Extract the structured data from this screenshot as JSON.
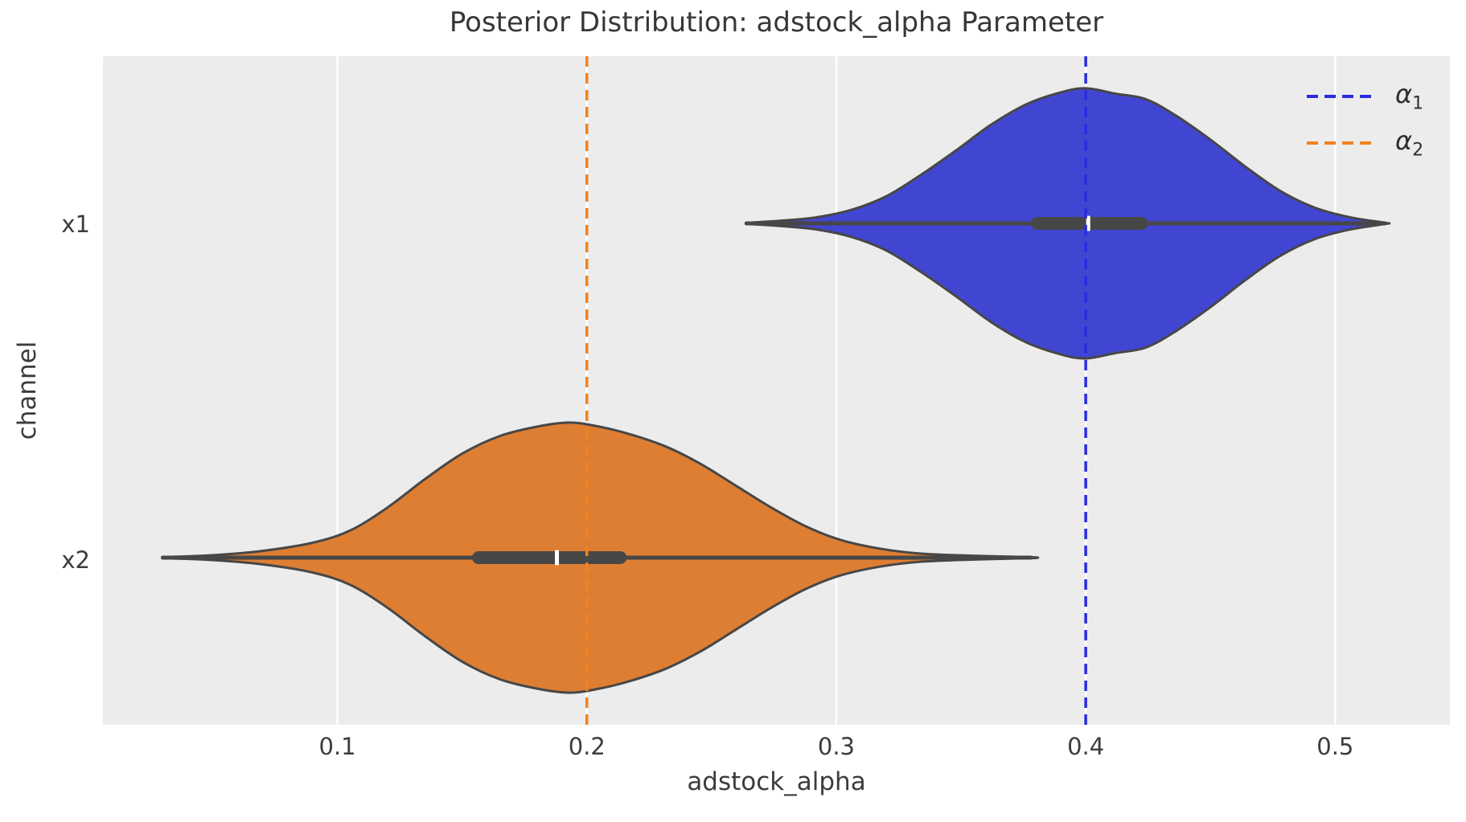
{
  "chart_data": {
    "type": "violin",
    "title": "Posterior Distribution: adstock_alpha Parameter",
    "xlabel": "adstock_alpha",
    "ylabel": "channel",
    "categories": [
      "x1",
      "x2"
    ],
    "x_ticks": [
      0.1,
      0.2,
      0.3,
      0.4,
      0.5
    ],
    "x_tick_labels": [
      "0.1",
      "0.2",
      "0.3",
      "0.4",
      "0.5"
    ],
    "x_range": [
      0.006,
      0.546
    ],
    "grid": true,
    "legend_position": "upper right",
    "violin_width": 0.8,
    "series": [
      {
        "name": "x1",
        "fill": "#4146d2",
        "median": 0.401,
        "q1": 0.378,
        "q3": 0.425,
        "data_range": [
          0.264,
          0.52
        ],
        "kde_profile": [
          [
            0.264,
            0.004
          ],
          [
            0.278,
            0.02
          ],
          [
            0.292,
            0.045
          ],
          [
            0.306,
            0.1
          ],
          [
            0.32,
            0.2
          ],
          [
            0.334,
            0.36
          ],
          [
            0.348,
            0.54
          ],
          [
            0.362,
            0.73
          ],
          [
            0.376,
            0.88
          ],
          [
            0.39,
            0.97
          ],
          [
            0.4,
            1.0
          ],
          [
            0.412,
            0.96
          ],
          [
            0.424,
            0.92
          ],
          [
            0.436,
            0.8
          ],
          [
            0.45,
            0.62
          ],
          [
            0.464,
            0.42
          ],
          [
            0.478,
            0.24
          ],
          [
            0.492,
            0.115
          ],
          [
            0.506,
            0.045
          ],
          [
            0.52,
            0.004
          ]
        ]
      },
      {
        "name": "x2",
        "fill": "#de7e33",
        "median": 0.188,
        "q1": 0.154,
        "q3": 0.216,
        "data_range": [
          0.03,
          0.378
        ],
        "kde_profile": [
          [
            0.03,
            0.004
          ],
          [
            0.05,
            0.018
          ],
          [
            0.07,
            0.05
          ],
          [
            0.09,
            0.11
          ],
          [
            0.105,
            0.2
          ],
          [
            0.12,
            0.37
          ],
          [
            0.135,
            0.58
          ],
          [
            0.15,
            0.77
          ],
          [
            0.165,
            0.9
          ],
          [
            0.18,
            0.97
          ],
          [
            0.193,
            1.0
          ],
          [
            0.205,
            0.97
          ],
          [
            0.218,
            0.91
          ],
          [
            0.232,
            0.82
          ],
          [
            0.246,
            0.69
          ],
          [
            0.26,
            0.53
          ],
          [
            0.274,
            0.37
          ],
          [
            0.288,
            0.23
          ],
          [
            0.302,
            0.13
          ],
          [
            0.318,
            0.065
          ],
          [
            0.334,
            0.03
          ],
          [
            0.355,
            0.014
          ],
          [
            0.378,
            0.004
          ]
        ]
      }
    ],
    "reference_lines": [
      {
        "x": 0.4,
        "color": "#2b2be0"
      },
      {
        "x": 0.2,
        "color": "#f0821e"
      }
    ]
  },
  "legend": {
    "items": [
      {
        "symbol": "α",
        "sub": "1",
        "color": "#2b2be0"
      },
      {
        "symbol": "α",
        "sub": "2",
        "color": "#f0821e"
      }
    ]
  },
  "colors": {
    "axes_background": "#ececec",
    "gridline": "#ffffff",
    "violin_edge": "#474747",
    "inner_box": "#474747",
    "median_tick": "#ffffff",
    "text": "#3c3c3c"
  }
}
